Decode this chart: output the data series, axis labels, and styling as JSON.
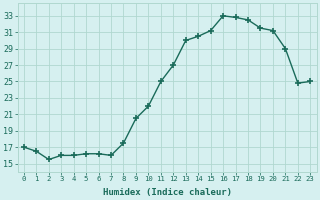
{
  "x": [
    0,
    1,
    2,
    3,
    4,
    5,
    6,
    7,
    8,
    9,
    10,
    11,
    12,
    13,
    14,
    15,
    16,
    17,
    18,
    19,
    20,
    21,
    22,
    23
  ],
  "y": [
    17.0,
    16.5,
    15.5,
    16.0,
    16.0,
    16.2,
    16.2,
    16.0,
    17.5,
    20.5,
    22.0,
    25.0,
    27.0,
    30.0,
    30.5,
    31.2,
    33.0,
    32.8,
    32.5,
    31.5,
    31.2,
    29.0,
    24.8,
    25.0
  ],
  "line_color": "#1a6b5a",
  "marker": "+",
  "bg_color": "#d6f0f0",
  "grid_color": "#b0d8d0",
  "xlabel": "Humidex (Indice chaleur)",
  "ylabel_ticks": [
    15,
    17,
    19,
    21,
    23,
    25,
    27,
    29,
    31,
    33
  ],
  "xtick_labels": [
    "0",
    "1",
    "2",
    "3",
    "4",
    "5",
    "6",
    "7",
    "8",
    "9",
    "10",
    "11",
    "12",
    "13",
    "14",
    "15",
    "16",
    "17",
    "18",
    "19",
    "20",
    "21",
    "22",
    "23"
  ],
  "ylim": [
    14.0,
    34.5
  ],
  "xlim": [
    -0.5,
    23.5
  ],
  "tick_color": "#1a6b5a",
  "label_color": "#1a6b5a",
  "linewidth": 1.0,
  "markersize": 5,
  "markeredgewidth": 1.2
}
